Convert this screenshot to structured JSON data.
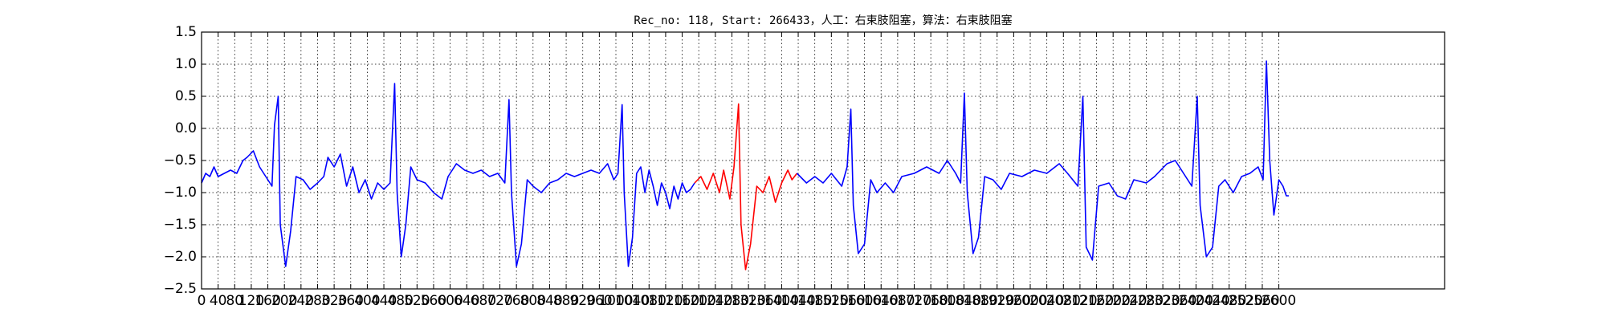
{
  "chart_data": {
    "type": "line",
    "title": "Rec_no: 118, Start: 266433，人工：右束肢阻塞，算法：右束肢阻塞",
    "xlim": [
      0,
      3000
    ],
    "ylim": [
      -2.5,
      1.5
    ],
    "xticks": [
      0,
      40,
      80,
      120,
      160,
      200,
      240,
      280,
      320,
      360,
      400,
      440,
      480,
      520,
      560,
      600,
      640,
      680,
      720,
      760,
      800,
      840,
      880,
      920,
      960,
      1000,
      1040,
      1080,
      1120,
      1160,
      1200,
      1240,
      1280,
      1320,
      1360,
      1400,
      1440,
      1480,
      1520,
      1560,
      1600,
      1640,
      1680,
      1720,
      1760,
      1800,
      1840,
      1880,
      1920,
      1960,
      2000,
      2040,
      2080,
      2120,
      2160,
      2200,
      2240,
      2280,
      2320,
      2360,
      2400,
      2440,
      2480,
      2520,
      2560,
      2600
    ],
    "yticks": [
      {
        "value": -2.5,
        "label": "−2.5"
      },
      {
        "value": -2.0,
        "label": "−2.0"
      },
      {
        "value": -1.5,
        "label": "−1.5"
      },
      {
        "value": -1.0,
        "label": "−1.0"
      },
      {
        "value": -0.5,
        "label": "−0.5"
      },
      {
        "value": 0,
        "label": "0.0"
      },
      0.5,
      {
        "value": 1.0,
        "label": "1.0"
      },
      1.5
    ],
    "grid": true,
    "series": [
      {
        "color": "#0000ff",
        "x": [
          0,
          10,
          20,
          30,
          40,
          55,
          70,
          85,
          100,
          110,
          125,
          140,
          155,
          170,
          176,
          185,
          190,
          203,
          215,
          228,
          245,
          262,
          280,
          295,
          305,
          320,
          335,
          350,
          365,
          380,
          395,
          410,
          425,
          440,
          455,
          466,
          472,
          482,
          493,
          505,
          520,
          540,
          560,
          580,
          595,
          615,
          635,
          655,
          675,
          695,
          715,
          732,
          742,
          748,
          760,
          772,
          786,
          800,
          820,
          840,
          860,
          880,
          900,
          920,
          940,
          960,
          980,
          995,
          1005,
          1015,
          1020,
          1030,
          1040,
          1050,
          1060,
          1070,
          1080,
          1090,
          1100,
          1110,
          1120,
          1130,
          1140,
          1150,
          1160,
          1170,
          1180,
          1190
        ],
        "values": [
          -0.85,
          -0.7,
          -0.75,
          -0.6,
          -0.75,
          -0.7,
          -0.65,
          -0.7,
          -0.5,
          -0.45,
          -0.35,
          -0.6,
          -0.75,
          -0.9,
          0.05,
          0.5,
          -1.5,
          -2.15,
          -1.6,
          -0.75,
          -0.8,
          -0.95,
          -0.85,
          -0.75,
          -0.45,
          -0.6,
          -0.4,
          -0.9,
          -0.6,
          -1.0,
          -0.8,
          -1.1,
          -0.85,
          -0.95,
          -0.85,
          0.7,
          -1.0,
          -2.0,
          -1.5,
          -0.6,
          -0.8,
          -0.85,
          -1.0,
          -1.1,
          -0.75,
          -0.55,
          -0.65,
          -0.7,
          -0.65,
          -0.75,
          -0.7,
          -0.85,
          0.45,
          -1.0,
          -2.15,
          -1.8,
          -0.8,
          -0.9,
          -1.0,
          -0.85,
          -0.8,
          -0.7,
          -0.75,
          -0.7,
          -0.65,
          -0.7,
          -0.55,
          -0.8,
          -0.7,
          0.37,
          -1.0,
          -2.15,
          -1.7,
          -0.7,
          -0.6,
          -1.0,
          -0.65,
          -0.9,
          -1.2,
          -0.85,
          -1.0,
          -1.25,
          -0.9,
          -1.1,
          -0.85,
          -1.0,
          -0.95,
          -0.85
        ]
      },
      {
        "color": "#ff0000",
        "x": [
          1190,
          1205,
          1220,
          1235,
          1250,
          1260,
          1275,
          1285,
          1296,
          1302,
          1313,
          1325,
          1340,
          1355,
          1370,
          1385,
          1400,
          1415,
          1425,
          1437
        ],
        "values": [
          -0.85,
          -0.75,
          -0.95,
          -0.7,
          -1.0,
          -0.65,
          -1.1,
          -0.6,
          0.38,
          -1.5,
          -2.2,
          -1.8,
          -0.9,
          -1.0,
          -0.75,
          -1.15,
          -0.85,
          -0.65,
          -0.8,
          -0.7
        ]
      },
      {
        "color": "#0000ff",
        "x": [
          1437,
          1460,
          1480,
          1500,
          1520,
          1545,
          1558,
          1567,
          1573,
          1585,
          1600,
          1615,
          1630,
          1650,
          1670,
          1690,
          1720,
          1750,
          1780,
          1800,
          1820,
          1832,
          1841,
          1848,
          1862,
          1875,
          1890,
          1910,
          1930,
          1950,
          1980,
          2010,
          2040,
          2070,
          2090,
          2115,
          2127,
          2135,
          2150,
          2165,
          2190,
          2210,
          2230,
          2250,
          2280,
          2300,
          2330,
          2350,
          2370,
          2390,
          2403,
          2410,
          2425,
          2440,
          2455,
          2470,
          2490,
          2510,
          2530,
          2550,
          2562,
          2570,
          2578,
          2588,
          2600,
          2610,
          2618,
          2624
        ],
        "values": [
          -0.7,
          -0.85,
          -0.75,
          -0.85,
          -0.7,
          -0.9,
          -0.6,
          0.3,
          -1.2,
          -1.95,
          -1.8,
          -0.8,
          -1.0,
          -0.85,
          -1.0,
          -0.75,
          -0.7,
          -0.6,
          -0.7,
          -0.5,
          -0.7,
          -0.85,
          0.55,
          -1.0,
          -1.95,
          -1.7,
          -0.75,
          -0.8,
          -0.95,
          -0.7,
          -0.75,
          -0.65,
          -0.7,
          -0.55,
          -0.7,
          -0.9,
          0.5,
          -1.85,
          -2.05,
          -0.9,
          -0.85,
          -1.05,
          -1.1,
          -0.8,
          -0.85,
          -0.75,
          -0.55,
          -0.5,
          -0.7,
          -0.9,
          0.5,
          -1.2,
          -2.0,
          -1.85,
          -0.9,
          -0.8,
          -1.0,
          -0.75,
          -0.7,
          -0.6,
          -0.8,
          1.05,
          -0.5,
          -1.35,
          -0.8,
          -0.9,
          -1.05,
          -1.05
        ]
      }
    ]
  }
}
